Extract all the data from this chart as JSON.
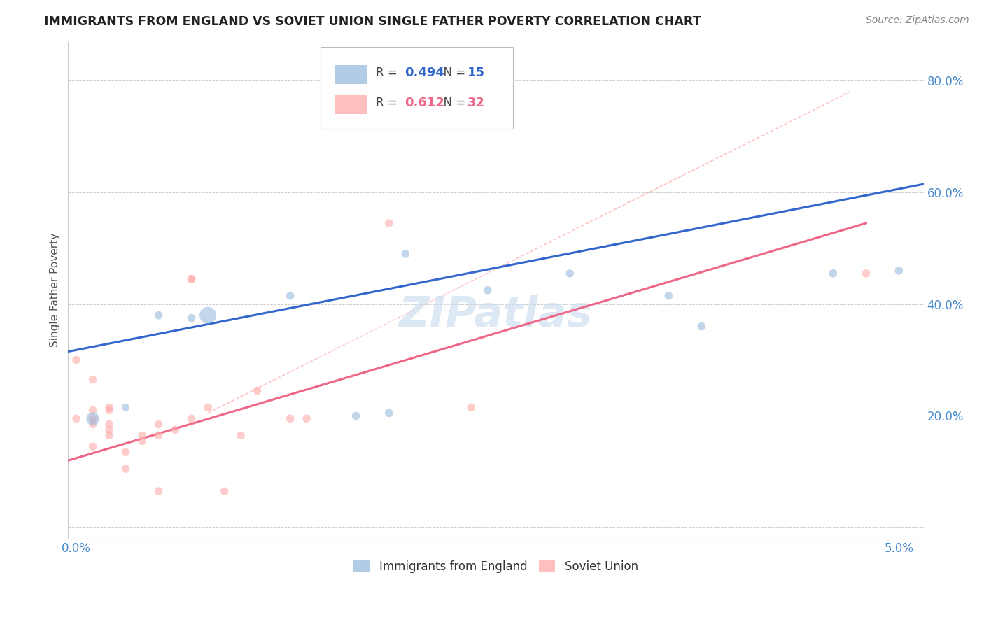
{
  "title": "IMMIGRANTS FROM ENGLAND VS SOVIET UNION SINGLE FATHER POVERTY CORRELATION CHART",
  "source_text": "Source: ZipAtlas.com",
  "xlabel_blue": "Immigrants from England",
  "xlabel_pink": "Soviet Union",
  "ylabel": "Single Father Poverty",
  "x_min": -0.0005,
  "x_max": 0.0515,
  "y_min": -0.02,
  "y_max": 0.87,
  "legend_blue_r": "0.494",
  "legend_blue_n": "15",
  "legend_pink_r": "0.612",
  "legend_pink_n": "32",
  "blue_scatter_x": [
    0.001,
    0.003,
    0.005,
    0.007,
    0.008,
    0.013,
    0.017,
    0.019,
    0.02,
    0.025,
    0.03,
    0.036,
    0.038,
    0.046,
    0.05
  ],
  "blue_scatter_y": [
    0.195,
    0.215,
    0.38,
    0.375,
    0.38,
    0.415,
    0.2,
    0.205,
    0.49,
    0.425,
    0.455,
    0.415,
    0.36,
    0.455,
    0.46
  ],
  "blue_scatter_sizes": [
    180,
    60,
    70,
    70,
    300,
    70,
    70,
    70,
    70,
    70,
    70,
    70,
    70,
    70,
    70
  ],
  "pink_scatter_x": [
    0.0,
    0.0,
    0.001,
    0.001,
    0.001,
    0.001,
    0.001,
    0.002,
    0.002,
    0.002,
    0.002,
    0.002,
    0.003,
    0.003,
    0.004,
    0.004,
    0.005,
    0.005,
    0.005,
    0.006,
    0.007,
    0.007,
    0.007,
    0.008,
    0.009,
    0.01,
    0.011,
    0.013,
    0.014,
    0.019,
    0.024,
    0.048
  ],
  "pink_scatter_y": [
    0.195,
    0.3,
    0.185,
    0.195,
    0.21,
    0.265,
    0.145,
    0.175,
    0.165,
    0.215,
    0.185,
    0.21,
    0.135,
    0.105,
    0.165,
    0.155,
    0.165,
    0.185,
    0.065,
    0.175,
    0.445,
    0.445,
    0.195,
    0.215,
    0.065,
    0.165,
    0.245,
    0.195,
    0.195,
    0.545,
    0.215,
    0.455
  ],
  "pink_scatter_sizes": [
    70,
    70,
    70,
    70,
    70,
    70,
    70,
    70,
    70,
    70,
    70,
    70,
    70,
    70,
    70,
    70,
    70,
    70,
    70,
    70,
    70,
    70,
    70,
    70,
    70,
    70,
    70,
    70,
    70,
    70,
    70,
    70
  ],
  "blue_line_x": [
    -0.0005,
    0.0515
  ],
  "blue_line_y": [
    0.315,
    0.615
  ],
  "pink_line_x": [
    -0.0005,
    0.048
  ],
  "pink_line_y": [
    0.12,
    0.545
  ],
  "diag_line_x": [
    0.008,
    0.047
  ],
  "diag_line_y": [
    0.205,
    0.78
  ],
  "blue_color": "#99BBDD",
  "pink_color": "#FFAAAA",
  "blue_line_color": "#3366CC",
  "pink_line_color": "#EE6688",
  "diag_color": "#FFBBBB",
  "watermark": "ZIPatlas",
  "background_color": "#ffffff",
  "grid_color": "#cccccc",
  "tick_label_color": "#4488CC",
  "ylabel_color": "#555555"
}
